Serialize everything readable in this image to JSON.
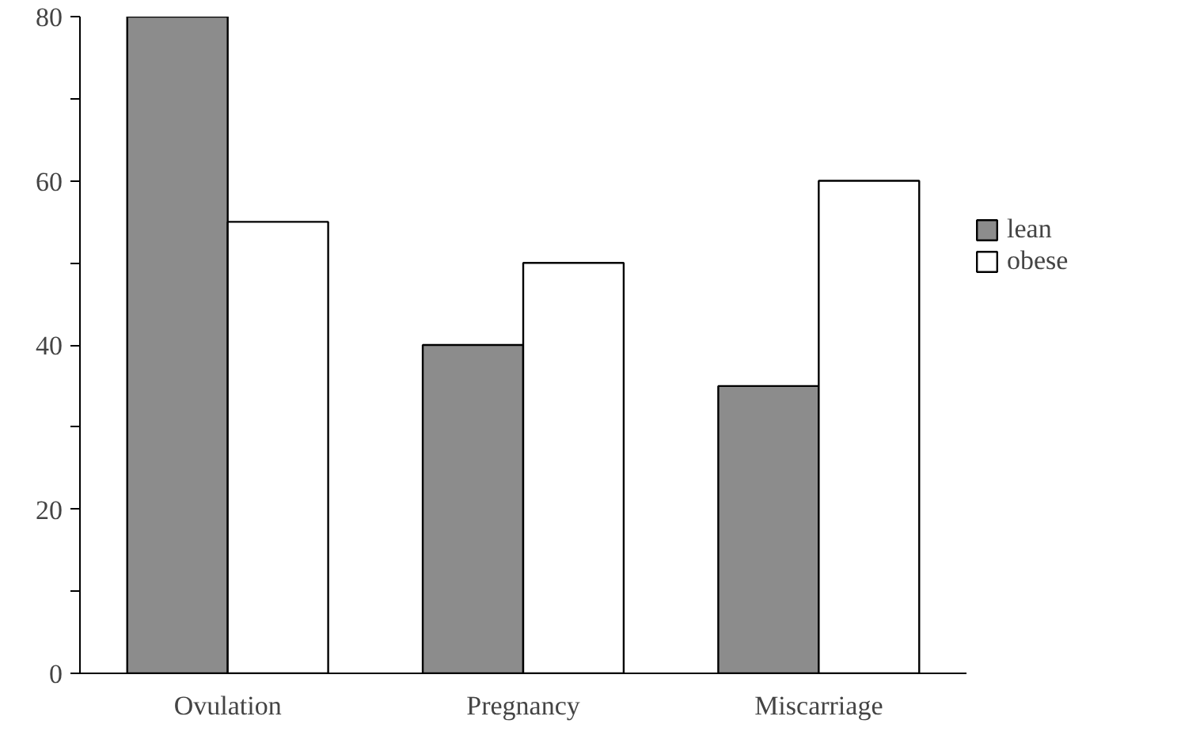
{
  "chart_data": {
    "type": "bar",
    "categories": [
      "Ovulation",
      "Pregnancy",
      "Miscarriage"
    ],
    "series": [
      {
        "name": "lean",
        "color": "#8c8c8c",
        "values": [
          80,
          40,
          35
        ]
      },
      {
        "name": "obese",
        "color": "#ffffff",
        "values": [
          55,
          50,
          60
        ]
      }
    ],
    "ylim": [
      0,
      80
    ],
    "yticks": [
      0,
      {
        "value": 10,
        "label": null
      },
      20,
      {
        "value": 30,
        "label": null
      },
      40,
      {
        "value": 50,
        "label": null
      },
      60,
      {
        "value": 70,
        "label": null
      },
      80
    ],
    "grid": false,
    "legend": "right"
  }
}
